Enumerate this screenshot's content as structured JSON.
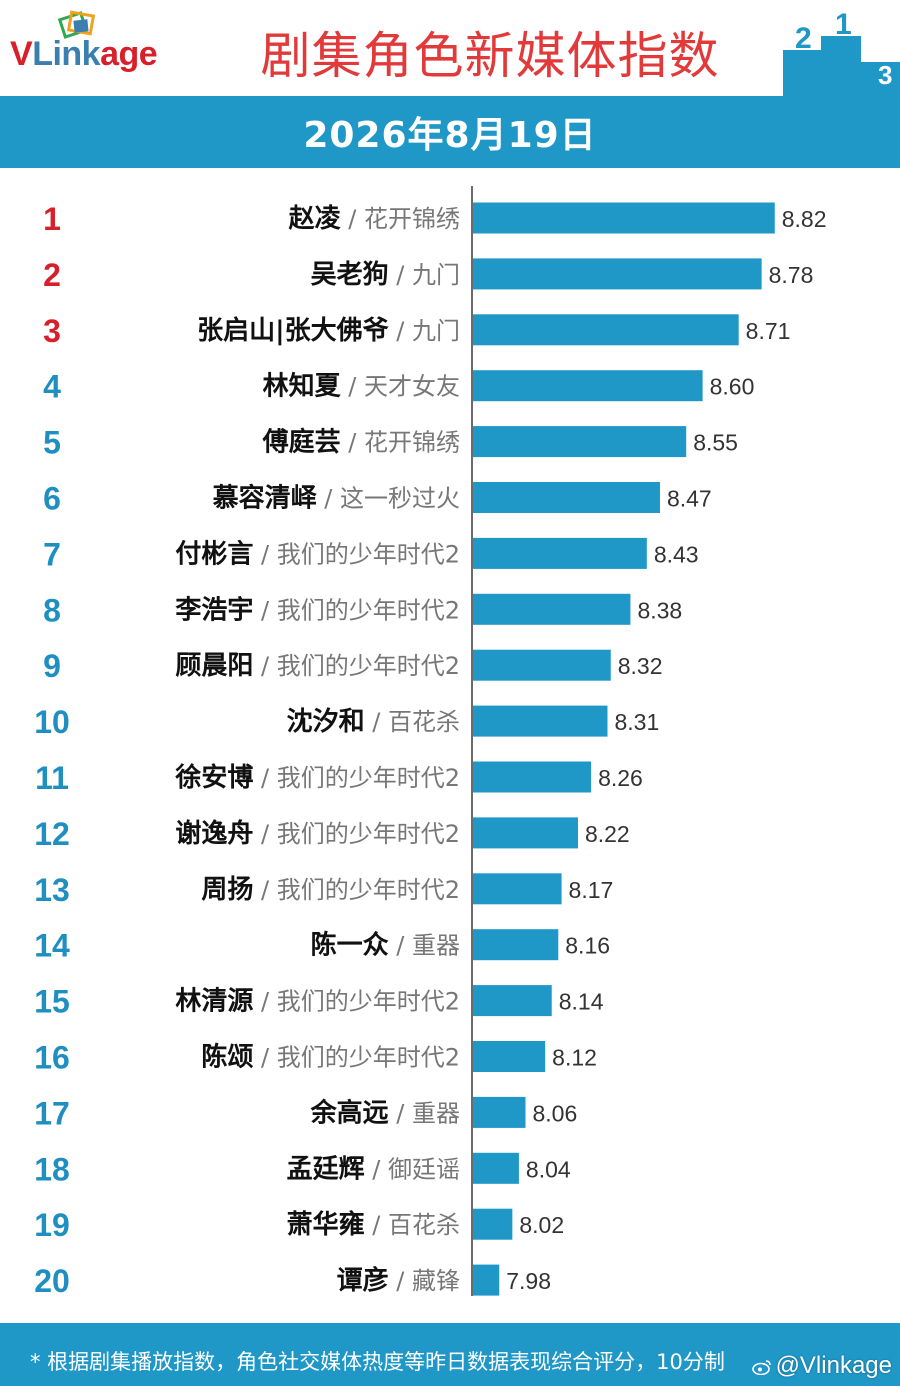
{
  "header": {
    "logo_text_v": "V",
    "logo_text_link": "Link",
    "logo_text_age": "age",
    "title": "剧集角色新媒体指数",
    "podium_labels": [
      "2",
      "1",
      "3"
    ]
  },
  "date": "2026年8月19日",
  "footnote": "* 根据剧集播放指数，角色社交媒体热度等昨日数据表现综合评分，10分制",
  "watermark": "@Vlinkage",
  "colors": {
    "bar": "#1f97c7",
    "top_rank": "#d8202a",
    "rank": "#1f8fc1",
    "title": "#e23a3a",
    "band": "#1f97c7"
  },
  "chart_data": {
    "type": "bar",
    "orientation": "horizontal",
    "title": "剧集角色新媒体指数",
    "subtitle": "2026年8月19日",
    "xlim": [
      7.9,
      8.9
    ],
    "grid": false,
    "legend": "none",
    "rows": [
      {
        "rank": "1",
        "name": "赵凌",
        "drama": "花开锦绣",
        "value": 8.82,
        "label": "8.82"
      },
      {
        "rank": "2",
        "name": "吴老狗",
        "drama": "九门",
        "value": 8.78,
        "label": "8.78"
      },
      {
        "rank": "3",
        "name": "张启山|张大佛爷",
        "drama": "九门",
        "value": 8.71,
        "label": "8.71"
      },
      {
        "rank": "4",
        "name": "林知夏",
        "drama": "天才女友",
        "value": 8.6,
        "label": "8.60"
      },
      {
        "rank": "5",
        "name": "傅庭芸",
        "drama": "花开锦绣",
        "value": 8.55,
        "label": "8.55"
      },
      {
        "rank": "6",
        "name": "慕容清峄",
        "drama": "这一秒过火",
        "value": 8.47,
        "label": "8.47"
      },
      {
        "rank": "7",
        "name": "付彬言",
        "drama": "我们的少年时代2",
        "value": 8.43,
        "label": "8.43"
      },
      {
        "rank": "8",
        "name": "李浩宇",
        "drama": "我们的少年时代2",
        "value": 8.38,
        "label": "8.38"
      },
      {
        "rank": "9",
        "name": "顾晨阳",
        "drama": "我们的少年时代2",
        "value": 8.32,
        "label": "8.32"
      },
      {
        "rank": "10",
        "name": "沈汐和",
        "drama": "百花杀",
        "value": 8.31,
        "label": "8.31"
      },
      {
        "rank": "11",
        "name": "徐安博",
        "drama": "我们的少年时代2",
        "value": 8.26,
        "label": "8.26"
      },
      {
        "rank": "12",
        "name": "谢逸舟",
        "drama": "我们的少年时代2",
        "value": 8.22,
        "label": "8.22"
      },
      {
        "rank": "13",
        "name": "周扬",
        "drama": "我们的少年时代2",
        "value": 8.17,
        "label": "8.17"
      },
      {
        "rank": "14",
        "name": "陈一众",
        "drama": "重器",
        "value": 8.16,
        "label": "8.16"
      },
      {
        "rank": "15",
        "name": "林清源",
        "drama": "我们的少年时代2",
        "value": 8.14,
        "label": "8.14"
      },
      {
        "rank": "16",
        "name": "陈颂",
        "drama": "我们的少年时代2",
        "value": 8.12,
        "label": "8.12"
      },
      {
        "rank": "17",
        "name": "余高远",
        "drama": "重器",
        "value": 8.06,
        "label": "8.06"
      },
      {
        "rank": "18",
        "name": "孟廷辉",
        "drama": "御廷谣",
        "value": 8.04,
        "label": "8.04"
      },
      {
        "rank": "19",
        "name": "萧华雍",
        "drama": "百花杀",
        "value": 8.02,
        "label": "8.02"
      },
      {
        "rank": "20",
        "name": "谭彦",
        "drama": "藏锋",
        "value": 7.98,
        "label": "7.98"
      }
    ]
  }
}
